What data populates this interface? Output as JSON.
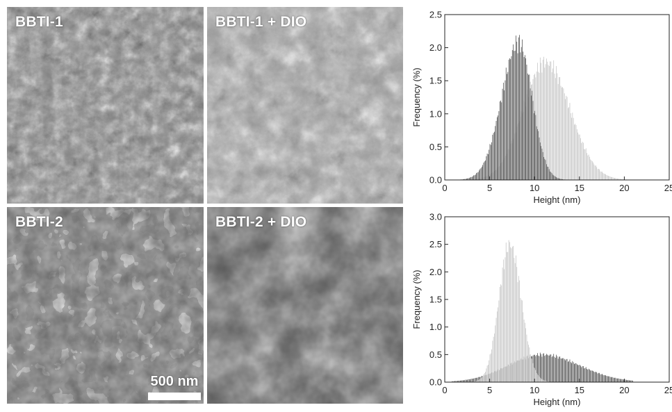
{
  "panels": [
    {
      "label": "BBTI-1"
    },
    {
      "label": "BBTI-1 + DIO"
    },
    {
      "label": "BBTI-2"
    },
    {
      "label": "BBTI-2 + DIO"
    }
  ],
  "scale_bar": {
    "label": "500 nm"
  },
  "chart_data": [
    {
      "type": "bar",
      "xlabel": "Height (nm)",
      "ylabel": "Frequency (%)",
      "xlim": [
        0,
        25
      ],
      "ylim": [
        0,
        2.5
      ],
      "xticks": [
        0,
        5,
        10,
        15,
        20,
        25
      ],
      "yticks": [
        0.0,
        0.5,
        1.0,
        1.5,
        2.0,
        2.5
      ],
      "series": [
        {
          "color": "#c4c4c4",
          "peak_x": 11.2,
          "peak_y": 1.78,
          "sigma_left": 2.5,
          "sigma_right": 2.7
        },
        {
          "color": "#4a4a4a",
          "peak_x": 8.2,
          "peak_y": 2.08,
          "sigma_left": 1.9,
          "sigma_right": 1.5
        }
      ]
    },
    {
      "type": "bar",
      "xlabel": "Height (nm)",
      "ylabel": "Frequency (%)",
      "xlim": [
        0,
        25
      ],
      "ylim": [
        0,
        3.0
      ],
      "xticks": [
        0,
        5,
        10,
        15,
        20,
        25
      ],
      "yticks": [
        0.0,
        0.5,
        1.0,
        1.5,
        2.0,
        2.5,
        3.0
      ],
      "series": [
        {
          "color": "#4a4a4a",
          "peak_x": 10.8,
          "peak_y": 0.5,
          "sigma_left": 3.8,
          "sigma_right": 4.2
        },
        {
          "color": "#c4c4c4",
          "peak_x": 7.2,
          "peak_y": 2.5,
          "sigma_left": 1.2,
          "sigma_right": 1.3
        }
      ]
    }
  ]
}
